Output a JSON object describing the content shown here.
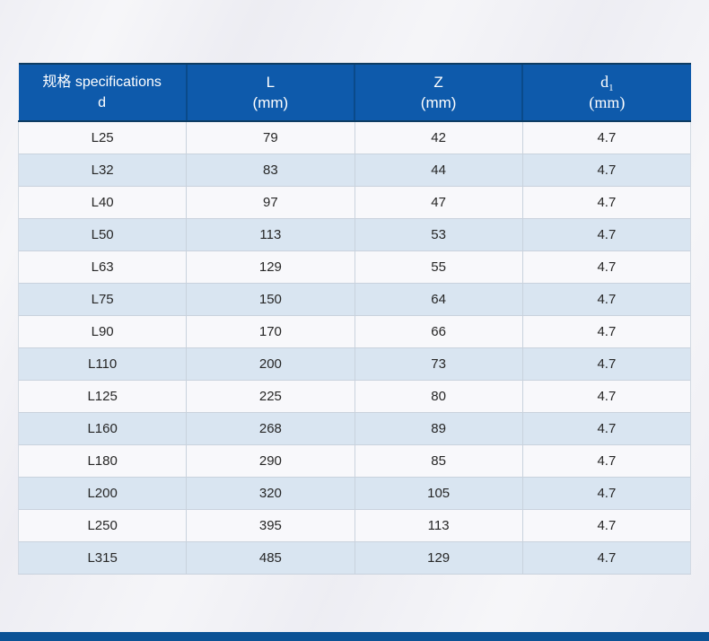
{
  "colors": {
    "page_bg": "#efeff4",
    "header_bg": "#0e5aab",
    "header_text": "#ffffff",
    "header_border": "#0e3c62",
    "header_divider": "#0a4a8a",
    "row_bg": "#f8f8fb",
    "row_alt_bg": "#d9e5f1",
    "cell_border": "#c9d2dd",
    "cell_text": "#262626",
    "bottom_bar": "#0b5295"
  },
  "table": {
    "columns": [
      {
        "title": "规格 specifications",
        "subtitle": "d"
      },
      {
        "title": "L",
        "subtitle": "(mm)"
      },
      {
        "title": "Z",
        "subtitle": "(mm)"
      },
      {
        "title": "d",
        "subscript": "1",
        "subtitle": "(mm)"
      }
    ],
    "rows": [
      [
        "L25",
        "79",
        "42",
        "4.7"
      ],
      [
        "L32",
        "83",
        "44",
        "4.7"
      ],
      [
        "L40",
        "97",
        "47",
        "4.7"
      ],
      [
        "L50",
        "113",
        "53",
        "4.7"
      ],
      [
        "L63",
        "129",
        "55",
        "4.7"
      ],
      [
        "L75",
        "150",
        "64",
        "4.7"
      ],
      [
        "L90",
        "170",
        "66",
        "4.7"
      ],
      [
        "L110",
        "200",
        "73",
        "4.7"
      ],
      [
        "L125",
        "225",
        "80",
        "4.7"
      ],
      [
        "L160",
        "268",
        "89",
        "4.7"
      ],
      [
        "L180",
        "290",
        "85",
        "4.7"
      ],
      [
        "L200",
        "320",
        "105",
        "4.7"
      ],
      [
        "L250",
        "395",
        "113",
        "4.7"
      ],
      [
        "L315",
        "485",
        "129",
        "4.7"
      ]
    ]
  }
}
